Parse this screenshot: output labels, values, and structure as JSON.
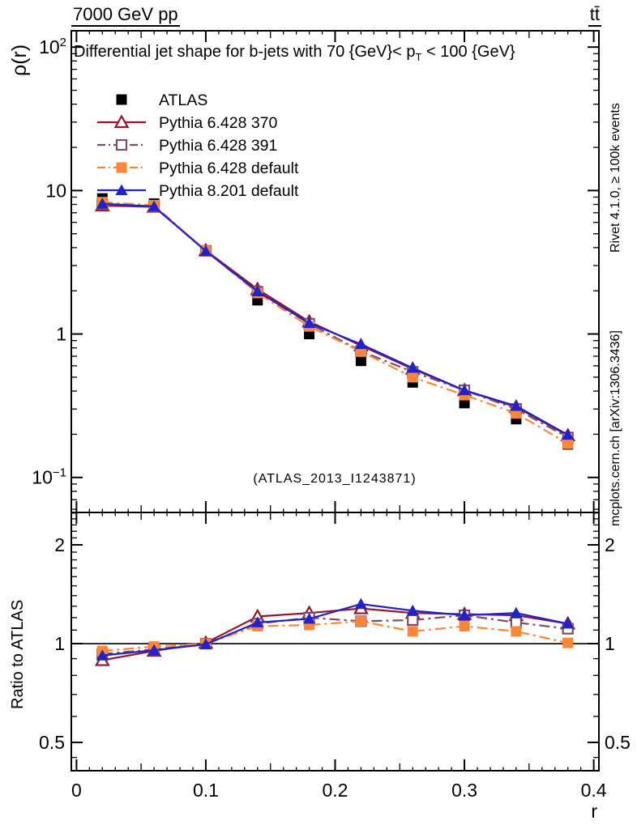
{
  "header": {
    "left": "7000 GeV pp",
    "right": "tt̄"
  },
  "plot": {
    "title_pre": "Differential jet shape for b-jets with 70 {GeV}< p",
    "title_sub": "T",
    "title_post": " < 100 {GeV}",
    "watermark": "(ATLAS_2013_I1243871)",
    "y_label": "ρ(r)",
    "ratio_label": "Ratio to ATLAS",
    "x_label": "r"
  },
  "side_notes": {
    "top": "Rivet 4.1.0, ≥ 100k events",
    "bottom": "mcplots.cern.ch [arXiv:1306.3436]"
  },
  "chart_data": {
    "type": "line",
    "title": "Differential jet shape for b-jets with 70 {GeV}< pT < 100 {GeV}",
    "xlabel": "r",
    "ylabel": "ρ(r)",
    "ratio_ylabel": "Ratio to ATLAS",
    "grid": false,
    "legend_position": "top-left",
    "x": [
      0.02,
      0.06,
      0.1,
      0.14,
      0.18,
      0.22,
      0.26,
      0.3,
      0.34,
      0.38
    ],
    "xlim": [
      -0.004,
      0.404
    ],
    "x_ticks": [
      {
        "v": 0,
        "t": "0"
      },
      {
        "v": 0.1,
        "t": "0.1"
      },
      {
        "v": 0.2,
        "t": "0.2"
      },
      {
        "v": 0.3,
        "t": "0.3"
      },
      {
        "v": 0.4,
        "t": "0.4"
      }
    ],
    "top_panel": {
      "yscale": "log",
      "ylim": [
        0.057,
        130
      ],
      "yticks": [
        {
          "v": 100,
          "t": "10",
          "e": "2"
        },
        {
          "v": 10,
          "t": "10"
        },
        {
          "v": 1,
          "t": "1"
        },
        {
          "v": 0.1,
          "t": "10",
          "e": "−1"
        }
      ]
    },
    "ratio_panel": {
      "yscale": "log",
      "ylim": [
        0.41,
        2.51
      ],
      "reference_line": 1,
      "yticks": [
        {
          "v": 2,
          "t": "2"
        },
        {
          "v": 1,
          "t": "1"
        },
        {
          "v": 0.5,
          "t": "0.5"
        }
      ]
    },
    "series": [
      {
        "name": "ATLAS",
        "color": "#000000",
        "marker": "square-filled",
        "line": "none",
        "values": [
          8.8,
          8.1,
          3.8,
          1.72,
          1.0,
          0.65,
          0.46,
          0.33,
          0.255,
          0.17
        ]
      },
      {
        "name": "Pythia 6.428 370",
        "color": "#991429",
        "marker": "triangle-open",
        "line": "solid",
        "values": [
          7.85,
          7.7,
          3.82,
          2.05,
          1.22,
          0.83,
          0.57,
          0.405,
          0.31,
          0.196
        ],
        "ratio": [
          0.89,
          0.95,
          1.005,
          1.21,
          1.24,
          1.28,
          1.24,
          1.23,
          1.22,
          1.15
        ]
      },
      {
        "name": "Pythia 6.428 391",
        "color": "#7b4d66",
        "marker": "square-open",
        "line": "dashdot",
        "values": [
          8.0,
          7.75,
          3.8,
          1.97,
          1.18,
          0.76,
          0.545,
          0.405,
          0.3,
          0.19
        ],
        "ratio": [
          0.93,
          0.96,
          1.0,
          1.15,
          1.2,
          1.17,
          1.18,
          1.22,
          1.16,
          1.11
        ]
      },
      {
        "name": "Pythia 6.428 default",
        "color": "#ff8636",
        "marker": "square-filled",
        "line": "dashdot",
        "values": [
          8.3,
          7.9,
          3.8,
          1.93,
          1.13,
          0.755,
          0.5,
          0.375,
          0.28,
          0.172
        ],
        "ratio": [
          0.95,
          0.98,
          1.0,
          1.13,
          1.14,
          1.17,
          1.09,
          1.13,
          1.09,
          1.005
        ],
        "ratio_err": [
          0.012,
          0.012,
          0.01,
          0.012,
          0.015,
          0.02,
          0.02,
          0.02,
          0.022,
          0.028
        ]
      },
      {
        "name": "Pythia 8.201 default",
        "color": "#2222cc",
        "marker": "triangle-filled",
        "line": "solid",
        "values": [
          8.1,
          7.75,
          3.78,
          1.98,
          1.19,
          0.85,
          0.58,
          0.405,
          0.315,
          0.198
        ],
        "ratio": [
          0.92,
          0.955,
          0.995,
          1.16,
          1.19,
          1.32,
          1.26,
          1.22,
          1.24,
          1.15
        ]
      }
    ]
  }
}
